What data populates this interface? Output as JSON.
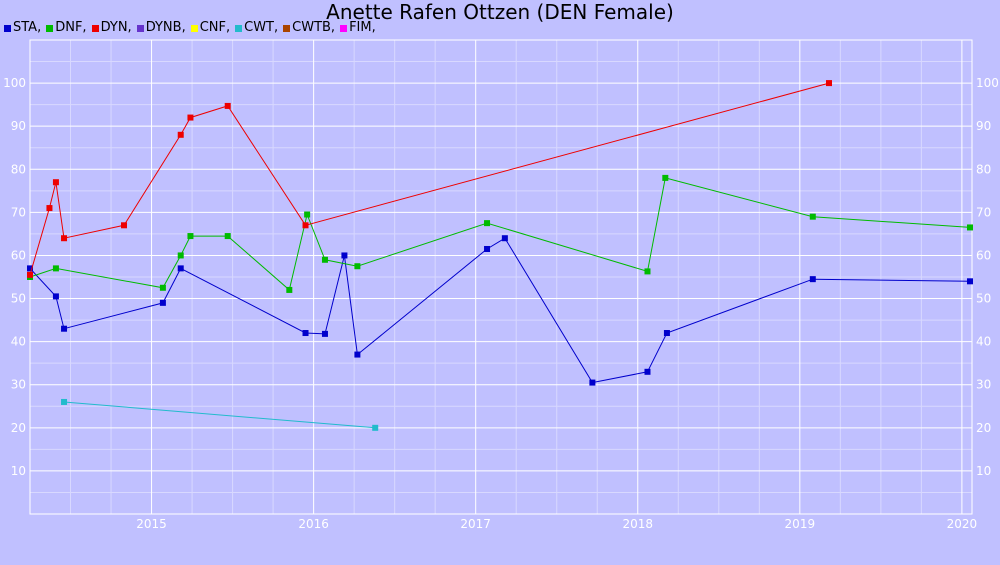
{
  "chart_data": {
    "type": "line",
    "title": "Anette Rafen Ottzen (DEN Female)",
    "xlabel": "",
    "ylabel": "",
    "ylim": [
      0,
      110
    ],
    "xlim": [
      2014.25,
      2020.05
    ],
    "grid": true,
    "legend_position": "top-left",
    "y_ticks": [
      10,
      20,
      30,
      40,
      50,
      60,
      70,
      80,
      90,
      100
    ],
    "x_ticks": [
      2015,
      2016,
      2017,
      2018,
      2019,
      2020
    ],
    "legend": [
      {
        "label": "STA,",
        "color": "#0000cc"
      },
      {
        "label": "DNF,",
        "color": "#00bb00"
      },
      {
        "label": "DYN,",
        "color": "#ee0000"
      },
      {
        "label": "DYNB,",
        "color": "#6633cc"
      },
      {
        "label": "CNF,",
        "color": "#ffff00"
      },
      {
        "label": "CWT,",
        "color": "#22bbcc"
      },
      {
        "label": "CWTB,",
        "color": "#aa4400"
      },
      {
        "label": "FIM,",
        "color": "#ff00ff"
      }
    ],
    "series": [
      {
        "name": "STA",
        "color": "#0000cc",
        "points": [
          [
            2014.25,
            57
          ],
          [
            2014.41,
            50.5
          ],
          [
            2014.46,
            43
          ],
          [
            2015.07,
            49
          ],
          [
            2015.18,
            57
          ],
          [
            2015.95,
            42
          ],
          [
            2016.07,
            41.8
          ],
          [
            2016.19,
            60
          ],
          [
            2016.27,
            37
          ],
          [
            2017.07,
            61.5
          ],
          [
            2017.18,
            64
          ],
          [
            2017.72,
            30.5
          ],
          [
            2018.06,
            33
          ],
          [
            2018.18,
            42
          ],
          [
            2019.08,
            54.5
          ],
          [
            2020.05,
            54
          ]
        ]
      },
      {
        "name": "DNF",
        "color": "#00bb00",
        "points": [
          [
            2014.25,
            55
          ],
          [
            2014.41,
            57
          ],
          [
            2015.07,
            52.5
          ],
          [
            2015.18,
            60
          ],
          [
            2015.24,
            64.5
          ],
          [
            2015.47,
            64.5
          ],
          [
            2015.85,
            52
          ],
          [
            2015.96,
            69.5
          ],
          [
            2016.07,
            59
          ],
          [
            2016.27,
            57.5
          ],
          [
            2017.07,
            67.5
          ],
          [
            2018.06,
            56.3
          ],
          [
            2018.17,
            78
          ],
          [
            2019.08,
            69
          ],
          [
            2020.05,
            66.5
          ]
        ]
      },
      {
        "name": "DYN",
        "color": "#ee0000",
        "points": [
          [
            2014.25,
            55.5
          ],
          [
            2014.37,
            71
          ],
          [
            2014.41,
            77
          ],
          [
            2014.46,
            64
          ],
          [
            2014.83,
            67
          ],
          [
            2015.18,
            88
          ],
          [
            2015.24,
            92
          ],
          [
            2015.47,
            94.7
          ],
          [
            2015.95,
            67
          ],
          [
            2019.18,
            100
          ]
        ]
      },
      {
        "name": "CWT",
        "color": "#22bbcc",
        "points": [
          [
            2014.46,
            26
          ],
          [
            2016.38,
            20
          ]
        ]
      }
    ]
  }
}
